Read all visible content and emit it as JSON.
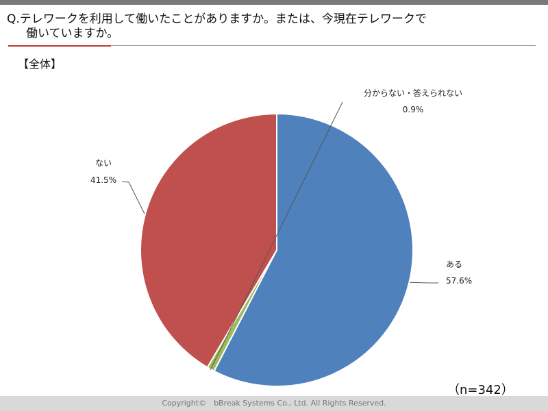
{
  "header": {
    "question_line1": "Q.テレワークを利用して働いたことがありますか。または、今現在テレワークで",
    "question_line2": "働いていますか。",
    "segment_label": "【全体】"
  },
  "chart_data": {
    "type": "pie",
    "title": "",
    "slices": [
      {
        "label": "ある",
        "value": 57.6,
        "value_label": "57.6%",
        "color": "#4f81bd"
      },
      {
        "label": "分からない・答えられない",
        "value": 0.9,
        "value_label": "0.9%",
        "color": "#9bbb59"
      },
      {
        "label": "ない",
        "value": 41.5,
        "value_label": "41.5%",
        "color": "#c0504d"
      }
    ],
    "legend": "none"
  },
  "sample_size": "（n=342）",
  "footer": {
    "copyright": "Copyright©　bBreak Systems Co., Ltd.  All Rights Reserved."
  }
}
